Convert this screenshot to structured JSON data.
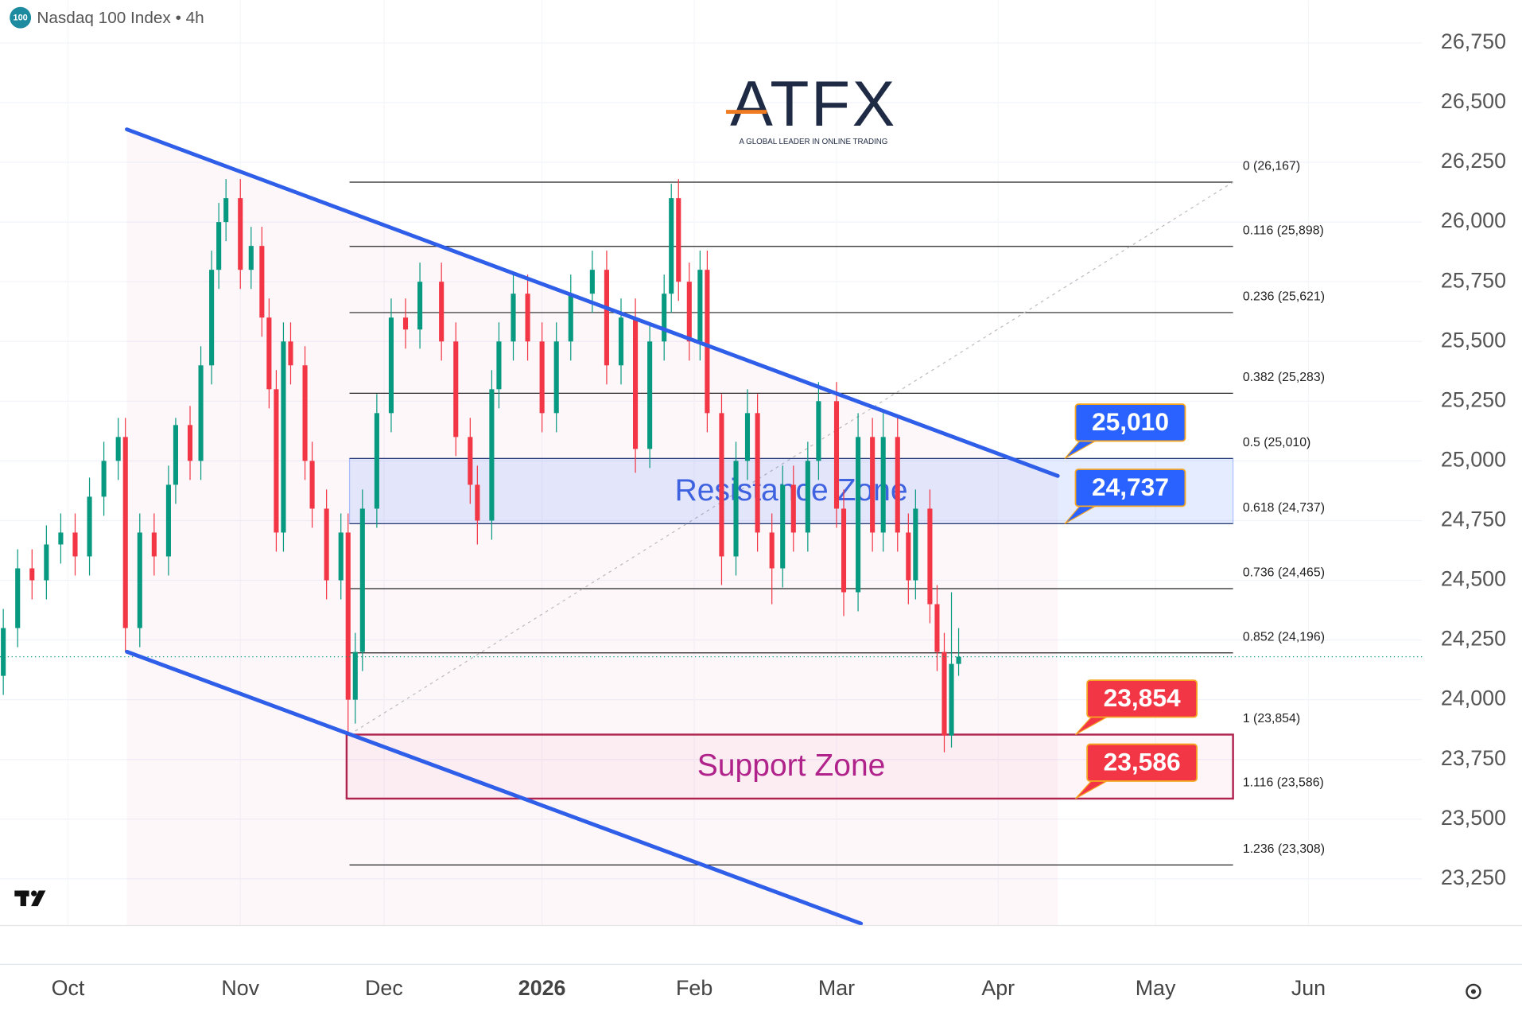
{
  "chart_data": {
    "type": "candlestick",
    "title": "Nasdaq 100 Index • 4h",
    "symbol_badge": "100",
    "logo": {
      "text": "ATFX",
      "tagline": "A GLOBAL LEADER IN ONLINE TRADING"
    },
    "xlim": [
      -9.46,
      188.51
    ],
    "ylim": [
      22892,
      26929
    ],
    "xticks": [
      {
        "value": 0,
        "label": "Oct"
      },
      {
        "value": 24,
        "label": "Nov"
      },
      {
        "value": 44,
        "label": "Dec"
      },
      {
        "value": 66,
        "label": "2026"
      },
      {
        "value": 87.2,
        "label": "Feb"
      },
      {
        "value": 107,
        "label": "Mar"
      },
      {
        "value": 129.5,
        "label": "Apr"
      },
      {
        "value": 151.4,
        "label": "May"
      },
      {
        "value": 172.7,
        "label": "Jun"
      }
    ],
    "yticks": [
      {
        "value": 23250,
        "label": "23,250"
      },
      {
        "value": 23500,
        "label": "23,500"
      },
      {
        "value": 23750,
        "label": "23,750"
      },
      {
        "value": 24000,
        "label": "24,000"
      },
      {
        "value": 24250,
        "label": "24,250"
      },
      {
        "value": 24500,
        "label": "24,500"
      },
      {
        "value": 24750,
        "label": "24,750"
      },
      {
        "value": 25000,
        "label": "25,000"
      },
      {
        "value": 25250,
        "label": "25,250"
      },
      {
        "value": 25500,
        "label": "25,500"
      },
      {
        "value": 25750,
        "label": "25,750"
      },
      {
        "value": 26000,
        "label": "26,000"
      },
      {
        "value": 26250,
        "label": "26,250"
      },
      {
        "value": 26500,
        "label": "26,500"
      },
      {
        "value": 26750,
        "label": "26,750"
      }
    ],
    "grid": true,
    "up_color": "#089981",
    "down_color": "#f23645",
    "x": [
      -9,
      -7,
      -5,
      -3,
      -1,
      1,
      3,
      5,
      7,
      8,
      10,
      12,
      14,
      15,
      17,
      18.5,
      20,
      21,
      22,
      24,
      25.5,
      27,
      28,
      29,
      30,
      31,
      33,
      34,
      36,
      38,
      39,
      40,
      41,
      43,
      45,
      47,
      49,
      52,
      54,
      56,
      57,
      59,
      60,
      62,
      64,
      66,
      68,
      70,
      73,
      75,
      77,
      79,
      81,
      83,
      84,
      85,
      86.5,
      88,
      89,
      91,
      93,
      94.6,
      96,
      98,
      99.5,
      101,
      103,
      104.5,
      107,
      108,
      110,
      112,
      113.5,
      115.5,
      117,
      118,
      120,
      121,
      122,
      123,
      124
    ],
    "open": [
      24100,
      24300,
      24550,
      24500,
      24650,
      24700,
      24600,
      24850,
      25000,
      25100,
      24300,
      24700,
      24600,
      24900,
      25150,
      25000,
      25400,
      25800,
      26000,
      26100,
      25800,
      25900,
      25600,
      25300,
      24700,
      25500,
      25400,
      25000,
      24800,
      24500,
      24700,
      24000,
      24200,
      24800,
      25200,
      25600,
      25550,
      25750,
      25500,
      25100,
      24900,
      24750,
      25300,
      25500,
      25700,
      25500,
      25200,
      25500,
      25700,
      25800,
      25400,
      25600,
      25050,
      25500,
      25700,
      26100,
      25750,
      25500,
      25800,
      25200,
      24600,
      25000,
      25200,
      24700,
      24550,
      24900,
      24700,
      25000,
      25250,
      24800,
      24450,
      25100,
      24700,
      25100,
      24700,
      24500,
      24800,
      24400,
      24200,
      23850,
      24150
    ],
    "high": [
      24380,
      24630,
      24630,
      24730,
      24780,
      24780,
      24930,
      25080,
      25180,
      25180,
      24780,
      24780,
      24980,
      25180,
      25230,
      25480,
      25880,
      26080,
      26180,
      26180,
      25980,
      25980,
      25680,
      25380,
      25580,
      25580,
      25480,
      25080,
      24880,
      24780,
      24780,
      24280,
      24880,
      25280,
      25680,
      25680,
      25830,
      25830,
      25580,
      25180,
      24980,
      25380,
      25580,
      25780,
      25780,
      25580,
      25580,
      25780,
      25880,
      25880,
      25680,
      25680,
      25580,
      25780,
      26160,
      26180,
      25830,
      25880,
      25880,
      25280,
      25080,
      25300,
      25280,
      24780,
      24980,
      24980,
      25080,
      25330,
      25330,
      24880,
      25200,
      25180,
      25200,
      25180,
      24780,
      24880,
      24880,
      24480,
      24280,
      24450,
      24300
    ],
    "low": [
      24020,
      24220,
      24420,
      24420,
      24570,
      24520,
      24520,
      24770,
      24920,
      24200,
      24220,
      24520,
      24520,
      24820,
      24920,
      24920,
      25320,
      25720,
      25920,
      25720,
      25720,
      25520,
      25220,
      24620,
      24620,
      25320,
      24920,
      24720,
      24420,
      24420,
      23850,
      23900,
      24120,
      24720,
      25120,
      25470,
      25470,
      25420,
      25020,
      24820,
      24650,
      24670,
      25220,
      25420,
      25420,
      25120,
      25120,
      25420,
      25620,
      25320,
      25320,
      24950,
      24970,
      25420,
      25620,
      25670,
      25420,
      25420,
      25120,
      24480,
      24520,
      24920,
      24620,
      24400,
      24470,
      24620,
      24620,
      24920,
      24720,
      24350,
      24370,
      24620,
      24620,
      24620,
      24400,
      24420,
      24320,
      24120,
      23780,
      23800,
      24100
    ],
    "close": [
      24300,
      24550,
      24500,
      24650,
      24700,
      24600,
      24850,
      25000,
      25100,
      24300,
      24700,
      24600,
      24900,
      25150,
      25000,
      25400,
      25800,
      26000,
      26100,
      25800,
      25900,
      25600,
      25300,
      24700,
      25500,
      25400,
      25000,
      24800,
      24500,
      24700,
      24000,
      24200,
      24800,
      25200,
      25600,
      25550,
      25750,
      25500,
      25100,
      24900,
      24750,
      25300,
      25500,
      25700,
      25500,
      25200,
      25500,
      25700,
      25800,
      25400,
      25600,
      25050,
      25500,
      25700,
      26100,
      25750,
      25500,
      25800,
      25200,
      24600,
      25000,
      25200,
      24700,
      24550,
      24900,
      24700,
      25000,
      25250,
      24800,
      24450,
      25100,
      24700,
      25100,
      24700,
      24500,
      24800,
      24400,
      24200,
      23850,
      24150,
      24180
    ],
    "channel": {
      "color": "#2f5ee8",
      "upper": {
        "x": [
          8.2,
          137.8
        ],
        "y": [
          26388,
          24937
        ]
      },
      "lower": {
        "x": [
          8.2,
          110.4
        ],
        "y": [
          24201,
          23063
        ]
      }
    },
    "fib_x": [
      39.2,
      162.2
    ],
    "fib_levels": [
      {
        "value": 26167,
        "label": "0 (26,167)"
      },
      {
        "value": 25898,
        "label": "0.116 (25,898)"
      },
      {
        "value": 25621,
        "label": "0.236 (25,621)"
      },
      {
        "value": 25283,
        "label": "0.382 (25,283)"
      },
      {
        "value": 25010,
        "label": "0.5 (25,010)"
      },
      {
        "value": 24737,
        "label": "0.618 (24,737)"
      },
      {
        "value": 24465,
        "label": "0.736 (24,465)"
      },
      {
        "value": 24196,
        "label": "0.852 (24,196)"
      },
      {
        "value": 23854,
        "label": "1 (23,854)"
      },
      {
        "value": 23586,
        "label": "1.116 (23,586)"
      },
      {
        "value": 23308,
        "label": "1.236 (23,308)"
      }
    ],
    "zones": [
      {
        "name": "Resistance Zone",
        "range": [
          24737,
          25010
        ],
        "color": "#3f63e0"
      },
      {
        "name": "Support Zone",
        "range": [
          23586,
          23854
        ],
        "color": "#b0238a"
      }
    ],
    "callouts": [
      {
        "value": 25010,
        "label": "25,010",
        "color": "#2962ff"
      },
      {
        "value": 24737,
        "label": "24,737",
        "color": "#2962ff"
      },
      {
        "value": 23854,
        "label": "23,854",
        "color": "#f23645"
      },
      {
        "value": 23586,
        "label": "23,586",
        "color": "#f23645"
      }
    ]
  }
}
